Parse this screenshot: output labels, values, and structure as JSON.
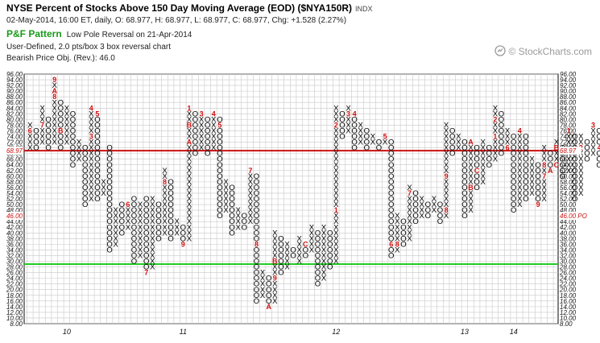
{
  "header": {
    "title": "NYSE Percent of Stocks Above 150 Day Moving Average (EOD) ($NYA150R)",
    "exchange": "INDX",
    "quote_line": "02-May-2014, 16:00 ET, daily, O: 68.977, H: 68.977, L: 68.977, C: 68.977, Chg: +1.528 (2.27%)",
    "pattern_label": "P&F Pattern",
    "pattern_text": "Low Pole Reversal on 21-Apr-2014",
    "settings_line": "User-Defined, 2.0 pts/box 3 box reversal chart",
    "objective_line": "Bearish Price Obj. (Rev.): 46.0",
    "brand": "© StockCharts.com",
    "brand_icon": "stockcharts-logo-icon"
  },
  "chart_data": {
    "type": "point-and-figure",
    "box_size": 2,
    "reversal": 3,
    "ylim": [
      8,
      96
    ],
    "y_ticks": [
      "96.00",
      "94.00",
      "92.00",
      "90.00",
      "88.00",
      "86.00",
      "84.00",
      "82.00",
      "80.00",
      "78.00",
      "76.00",
      "74.00",
      "72.00",
      "70.00",
      "68.00",
      "66.00",
      "64.00",
      "62.00",
      "60.00",
      "58.00",
      "56.00",
      "54.00",
      "52.00",
      "50.00",
      "48.00",
      "46.00",
      "44.00",
      "42.00",
      "40.00",
      "38.00",
      "36.00",
      "34.00",
      "32.00",
      "30.00",
      "28.00",
      "26.00",
      "24.00",
      "22.00",
      "20.00",
      "18.00",
      "16.00",
      "14.00",
      "12.00",
      "10.00",
      "8.00"
    ],
    "x_labels": [
      {
        "label": "10",
        "col": 6
      },
      {
        "label": "11",
        "col": 25
      },
      {
        "label": "12",
        "col": 50
      },
      {
        "label": "13",
        "col": 71
      },
      {
        "label": "14",
        "col": 79
      }
    ],
    "grid": true,
    "lines": [
      {
        "name": "bullish support",
        "value": 29.0,
        "color": "#22cc22"
      },
      {
        "name": "bearish resistance",
        "value": 69.0,
        "color": "#cc1111"
      }
    ],
    "markers": [
      {
        "label": "68.97",
        "value": 68.97,
        "color": "#cc1111",
        "side": "right"
      },
      {
        "label": "68.97",
        "value": 68.97,
        "color": "#cc1111",
        "side": "left"
      },
      {
        "label": "46.00 PO",
        "value": 46.0,
        "color": "#cc1111",
        "side": "right"
      },
      {
        "label": "46.00",
        "value": 46.0,
        "color": "#cc1111",
        "side": "left"
      }
    ],
    "columns": [
      {
        "t": "X",
        "lo": 70,
        "hi": 78,
        "m": {
          "76": "6"
        }
      },
      {
        "t": "O",
        "lo": 70,
        "hi": 76
      },
      {
        "t": "X",
        "lo": 72,
        "hi": 84,
        "m": {
          "78": "7"
        }
      },
      {
        "t": "O",
        "lo": 70,
        "hi": 80
      },
      {
        "t": "X",
        "lo": 72,
        "hi": 94,
        "m": {
          "94": "9",
          "90": "A",
          "88": "8"
        }
      },
      {
        "t": "O",
        "lo": 70,
        "hi": 86,
        "m": {
          "76": "B"
        }
      },
      {
        "t": "X",
        "lo": 72,
        "hi": 84
      },
      {
        "t": "O",
        "lo": 64,
        "hi": 82
      },
      {
        "t": "X",
        "lo": 66,
        "hi": 72
      },
      {
        "t": "O",
        "lo": 50,
        "hi": 70
      },
      {
        "t": "X",
        "lo": 52,
        "hi": 84,
        "m": {
          "84": "4",
          "74": "3"
        }
      },
      {
        "t": "O",
        "lo": 52,
        "hi": 82,
        "m": {
          "82": "5"
        }
      },
      {
        "t": "X",
        "lo": 54,
        "hi": 58
      },
      {
        "t": "O",
        "lo": 34,
        "hi": 70
      },
      {
        "t": "X",
        "lo": 36,
        "hi": 48
      },
      {
        "t": "O",
        "lo": 40,
        "hi": 50
      },
      {
        "t": "X",
        "lo": 42,
        "hi": 50,
        "m": {
          "50": "6"
        }
      },
      {
        "t": "O",
        "lo": 30,
        "hi": 52
      },
      {
        "t": "X",
        "lo": 32,
        "hi": 50
      },
      {
        "t": "O",
        "lo": 26,
        "hi": 52,
        "m": {
          "26": "7"
        }
      },
      {
        "t": "X",
        "lo": 28,
        "hi": 52
      },
      {
        "t": "O",
        "lo": 38,
        "hi": 50
      },
      {
        "t": "X",
        "lo": 40,
        "hi": 62,
        "m": {
          "58": "8"
        }
      },
      {
        "t": "O",
        "lo": 38,
        "hi": 58
      },
      {
        "t": "X",
        "lo": 40,
        "hi": 44
      },
      {
        "t": "O",
        "lo": 36,
        "hi": 42,
        "m": {
          "36": "9"
        }
      },
      {
        "t": "X",
        "lo": 38,
        "hi": 84,
        "m": {
          "84": "1",
          "78": "B",
          "72": "A"
        }
      },
      {
        "t": "O",
        "lo": 68,
        "hi": 82
      },
      {
        "t": "X",
        "lo": 70,
        "hi": 82,
        "m": {
          "82": "3"
        }
      },
      {
        "t": "O",
        "lo": 68,
        "hi": 80
      },
      {
        "t": "X",
        "lo": 70,
        "hi": 82,
        "m": {
          "82": "4"
        }
      },
      {
        "t": "O",
        "lo": 46,
        "hi": 80,
        "m": {
          "78": "5"
        }
      },
      {
        "t": "X",
        "lo": 48,
        "hi": 58
      },
      {
        "t": "O",
        "lo": 40,
        "hi": 56
      },
      {
        "t": "X",
        "lo": 42,
        "hi": 48
      },
      {
        "t": "O",
        "lo": 42,
        "hi": 46
      },
      {
        "t": "X",
        "lo": 44,
        "hi": 62,
        "m": {
          "62": "7"
        }
      },
      {
        "t": "O",
        "lo": 16,
        "hi": 60,
        "m": {
          "36": "8"
        }
      },
      {
        "t": "X",
        "lo": 18,
        "hi": 26
      },
      {
        "t": "O",
        "lo": 14,
        "hi": 24,
        "m": {
          "14": "A"
        }
      },
      {
        "t": "X",
        "lo": 16,
        "hi": 40,
        "m": {
          "30": "B",
          "24": "9"
        }
      },
      {
        "t": "O",
        "lo": 26,
        "hi": 38
      },
      {
        "t": "X",
        "lo": 28,
        "hi": 36
      },
      {
        "t": "O",
        "lo": 32,
        "hi": 34
      },
      {
        "t": "X",
        "lo": 30,
        "hi": 38
      },
      {
        "t": "O",
        "lo": 32,
        "hi": 36,
        "m": {
          "36": "C"
        }
      },
      {
        "t": "X",
        "lo": 34,
        "hi": 42
      },
      {
        "t": "O",
        "lo": 22,
        "hi": 40
      },
      {
        "t": "X",
        "lo": 24,
        "hi": 42
      },
      {
        "t": "O",
        "lo": 28,
        "hi": 40
      },
      {
        "t": "X",
        "lo": 30,
        "hi": 84,
        "m": {
          "78": "2",
          "48": "1"
        }
      },
      {
        "t": "O",
        "lo": 74,
        "hi": 82
      },
      {
        "t": "X",
        "lo": 76,
        "hi": 84,
        "m": {
          "82": "3"
        }
      },
      {
        "t": "O",
        "lo": 70,
        "hi": 82,
        "m": {
          "82": "4"
        }
      },
      {
        "t": "X",
        "lo": 72,
        "hi": 78
      },
      {
        "t": "O",
        "lo": 70,
        "hi": 76
      },
      {
        "t": "X",
        "lo": 72,
        "hi": 74
      },
      {
        "t": "O",
        "lo": 70,
        "hi": 72
      },
      {
        "t": "X",
        "lo": 72,
        "hi": 74,
        "m": {
          "74": "5"
        }
      },
      {
        "t": "O",
        "lo": 32,
        "hi": 72,
        "m": {
          "36": "6"
        }
      },
      {
        "t": "X",
        "lo": 34,
        "hi": 46,
        "m": {
          "36": "8"
        }
      },
      {
        "t": "O",
        "lo": 36,
        "hi": 44
      },
      {
        "t": "X",
        "lo": 38,
        "hi": 56,
        "m": {
          "54": "7"
        }
      },
      {
        "t": "O",
        "lo": 44,
        "hi": 54
      },
      {
        "t": "X",
        "lo": 46,
        "hi": 52
      },
      {
        "t": "O",
        "lo": 46,
        "hi": 50
      },
      {
        "t": "X",
        "lo": 48,
        "hi": 52
      },
      {
        "t": "O",
        "lo": 44,
        "hi": 50
      },
      {
        "t": "X",
        "lo": 46,
        "hi": 78,
        "m": {
          "60": "9",
          "48": "8"
        }
      },
      {
        "t": "O",
        "lo": 68,
        "hi": 76
      },
      {
        "t": "X",
        "lo": 70,
        "hi": 74
      },
      {
        "t": "O",
        "lo": 46,
        "hi": 72
      },
      {
        "t": "X",
        "lo": 48,
        "hi": 72,
        "m": {
          "72": "A",
          "56": "B"
        }
      },
      {
        "t": "O",
        "lo": 56,
        "hi": 70,
        "m": {
          "62": "C"
        }
      },
      {
        "t": "X",
        "lo": 58,
        "hi": 72
      },
      {
        "t": "O",
        "lo": 64,
        "hi": 70
      },
      {
        "t": "X",
        "lo": 66,
        "hi": 84,
        "m": {
          "80": "2",
          "74": "1"
        }
      },
      {
        "t": "O",
        "lo": 68,
        "hi": 82
      },
      {
        "t": "X",
        "lo": 70,
        "hi": 76,
        "m": {
          "70": "6"
        }
      },
      {
        "t": "O",
        "lo": 48,
        "hi": 74
      },
      {
        "t": "X",
        "lo": 50,
        "hi": 76,
        "m": {
          "76": "4"
        }
      },
      {
        "t": "O",
        "lo": 52,
        "hi": 74
      },
      {
        "t": "X",
        "lo": 54,
        "hi": 66
      },
      {
        "t": "O",
        "lo": 50,
        "hi": 64,
        "m": {
          "50": "9"
        }
      },
      {
        "t": "X",
        "lo": 52,
        "hi": 70,
        "m": {
          "64": "8",
          "60": "7"
        }
      },
      {
        "t": "O",
        "lo": 62,
        "hi": 68,
        "m": {
          "62": "A"
        }
      },
      {
        "t": "X",
        "lo": 64,
        "hi": 72,
        "m": {
          "70": "B",
          "64": "C"
        }
      },
      {
        "t": "O",
        "lo": 60,
        "hi": 70
      },
      {
        "t": "X",
        "lo": 62,
        "hi": 76,
        "m": {
          "76": "1"
        }
      },
      {
        "t": "O",
        "lo": 52,
        "hi": 74
      },
      {
        "t": "X",
        "lo": 54,
        "hi": 74,
        "m": {
          "70": "2"
        }
      },
      {
        "t": "O",
        "lo": 66,
        "hi": 72
      },
      {
        "t": "X",
        "lo": 68,
        "hi": 78,
        "m": {
          "78": "3"
        }
      },
      {
        "t": "O",
        "lo": 64,
        "hi": 76,
        "m": {
          "70": "4"
        }
      },
      {
        "t": "X",
        "lo": 66,
        "hi": 72
      },
      {
        "t": "O",
        "lo": 62,
        "hi": 70
      },
      {
        "t": "X",
        "lo": 64,
        "hi": 70
      }
    ]
  }
}
